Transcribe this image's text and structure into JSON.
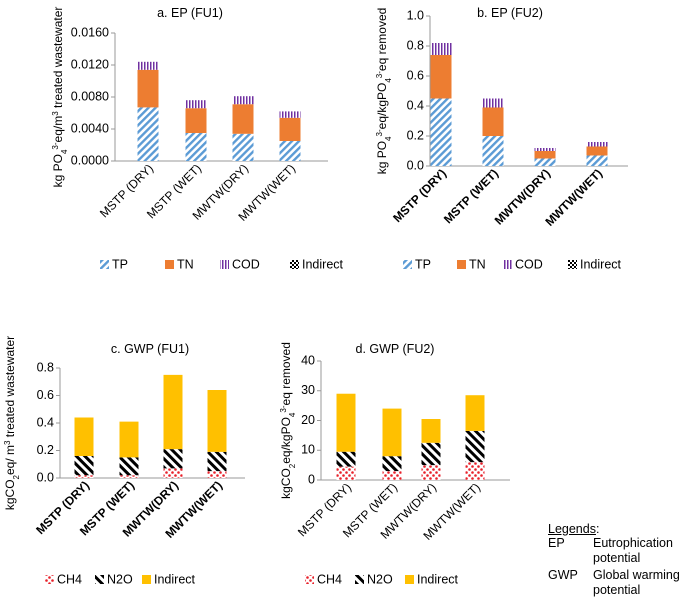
{
  "legend_glossary": {
    "title": "Legends",
    "colon": ":",
    "items": [
      {
        "abbr": "EP",
        "desc": "Eutrophication potential"
      },
      {
        "abbr": "GWP",
        "desc": "Global warming potential"
      }
    ]
  },
  "chart_data": [
    {
      "type": "bar",
      "stacked": true,
      "title": "a. EP (FU1)",
      "categories": [
        "MSTP (DRY)",
        "MSTP (WET)",
        "MWTW(DRY)",
        "MWTW(WET)"
      ],
      "ylabel": "kg PO4 3-eq/m3 treated wastewater",
      "ylim": [
        0,
        0.016
      ],
      "yticks": [
        0,
        0.004,
        0.008,
        0.012,
        0.016
      ],
      "ytick_labels": [
        "0.0000",
        "0.0040",
        "0.0080",
        "0.0120",
        "0.0160"
      ],
      "series": [
        {
          "name": "TP",
          "color": "#5b9bd5",
          "pattern": "hatch",
          "values": [
            0.0067,
            0.0035,
            0.0034,
            0.0025
          ]
        },
        {
          "name": "TN",
          "color": "#ed7d31",
          "pattern": "solid",
          "values": [
            0.0047,
            0.0031,
            0.0037,
            0.0029
          ]
        },
        {
          "name": "COD",
          "color": "#7030a0",
          "pattern": "vlines",
          "values": [
            0.001,
            0.001,
            0.001,
            0.0008
          ]
        },
        {
          "name": "Indirect",
          "color": "#000000",
          "pattern": "checker",
          "values": [
            0,
            0,
            0,
            0
          ]
        }
      ],
      "legend": "bottom"
    },
    {
      "type": "bar",
      "stacked": true,
      "title": "b. EP (FU2)",
      "categories": [
        "MSTP (DRY)",
        "MSTP (WET)",
        "MWTW(DRY)",
        "MWTW(WET)"
      ],
      "ylabel": "kg PO4 3-eq/kgPO4 3-eq removed",
      "ylim": [
        0,
        1.0
      ],
      "yticks": [
        0,
        0.2,
        0.4,
        0.6,
        0.8,
        1.0
      ],
      "ytick_labels": [
        "0.0",
        "0.2",
        "0.4",
        "0.6",
        "0.8",
        "1.0"
      ],
      "series": [
        {
          "name": "TP",
          "color": "#5b9bd5",
          "pattern": "hatch",
          "values": [
            0.45,
            0.2,
            0.05,
            0.07
          ]
        },
        {
          "name": "TN",
          "color": "#ed7d31",
          "pattern": "solid",
          "values": [
            0.29,
            0.19,
            0.05,
            0.06
          ]
        },
        {
          "name": "COD",
          "color": "#7030a0",
          "pattern": "vlines",
          "values": [
            0.08,
            0.06,
            0.02,
            0.03
          ]
        },
        {
          "name": "Indirect",
          "color": "#000000",
          "pattern": "checker",
          "values": [
            0,
            0,
            0,
            0
          ]
        }
      ],
      "legend": "bottom"
    },
    {
      "type": "bar",
      "stacked": true,
      "title": "c. GWP (FU1)",
      "categories": [
        "MSTP (DRY)",
        "MSTP (WET)",
        "MWTW(DRY)",
        "MWTW(WET)"
      ],
      "ylabel": "kgCO2eq/ m3 treated wastewater",
      "ylim": [
        0,
        0.8
      ],
      "yticks": [
        0,
        0.2,
        0.4,
        0.6,
        0.8
      ],
      "ytick_labels": [
        "0.0",
        "0.2",
        "0.4",
        "0.6",
        "0.8"
      ],
      "series": [
        {
          "name": "CH4",
          "color": "#e8202a",
          "pattern": "dots",
          "values": [
            0.02,
            0.02,
            0.07,
            0.05
          ]
        },
        {
          "name": "N2O",
          "color": "#000000",
          "pattern": "diag",
          "values": [
            0.14,
            0.13,
            0.14,
            0.14
          ]
        },
        {
          "name": "Indirect",
          "color": "#ffc000",
          "pattern": "solid",
          "values": [
            0.28,
            0.26,
            0.54,
            0.45
          ]
        }
      ],
      "legend": "bottom"
    },
    {
      "type": "bar",
      "stacked": true,
      "title": "d. GWP (FU2)",
      "categories": [
        "MSTP (DRY)",
        "MSTP (WET)",
        "MWTW(DRY)",
        "MWTW(WET)"
      ],
      "ylabel": "kgCO2eq/kgPO4 3-eq removed",
      "ylim": [
        0,
        40
      ],
      "yticks": [
        0,
        10,
        20,
        30,
        40
      ],
      "ytick_labels": [
        "0",
        "10",
        "20",
        "30",
        "40"
      ],
      "series": [
        {
          "name": "CH4",
          "color": "#e8202a",
          "pattern": "dots",
          "values": [
            4.5,
            3.0,
            5.0,
            6.0
          ]
        },
        {
          "name": "N2O",
          "color": "#000000",
          "pattern": "diag",
          "values": [
            5.0,
            5.0,
            7.5,
            10.5
          ]
        },
        {
          "name": "Indirect",
          "color": "#ffc000",
          "pattern": "solid",
          "values": [
            19.5,
            16.0,
            8.0,
            12.0
          ]
        }
      ],
      "legend": "bottom"
    }
  ]
}
